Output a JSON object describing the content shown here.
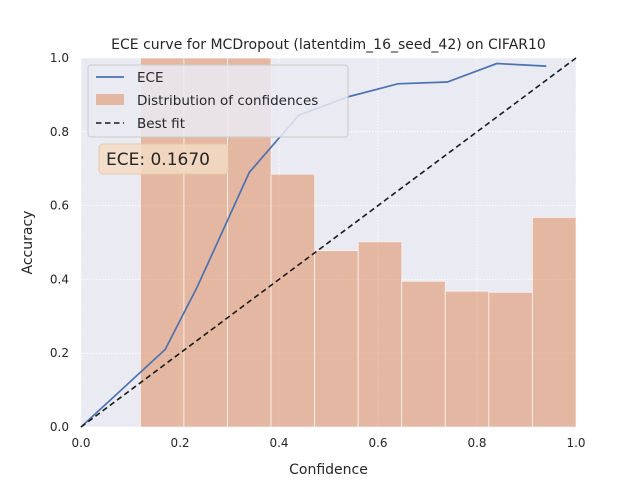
{
  "chart_data": {
    "type": "bar",
    "title": "ECE curve for MCDropout (latentdim_16_seed_42) on CIFAR10",
    "xlabel": "Confidence",
    "ylabel": "Accuracy",
    "xlim": [
      0,
      1
    ],
    "ylim": [
      0,
      1
    ],
    "x_ticks": [
      "0.0",
      "0.2",
      "0.4",
      "0.6",
      "0.8",
      "1.0"
    ],
    "y_ticks": [
      "0.0",
      "0.2",
      "0.4",
      "0.6",
      "0.8",
      "1.0"
    ],
    "grid": true,
    "legend_position": "top-left",
    "annotation": "ECE: 0.1670",
    "colors": {
      "background": "#eaeaf2",
      "grid": "#ffffff",
      "ece_line": "#4c72b0",
      "histogram": "#dd8452",
      "best_fit": "#1a1a1a",
      "annotation_box": "#f3dcc4"
    },
    "series": [
      {
        "name": "ECE",
        "kind": "line",
        "x": [
          0.0,
          0.17,
          0.235,
          0.34,
          0.44,
          0.54,
          0.64,
          0.74,
          0.84,
          0.94
        ],
        "y": [
          0.0,
          0.21,
          0.38,
          0.69,
          0.845,
          0.895,
          0.93,
          0.935,
          0.985,
          0.978
        ]
      },
      {
        "name": "Distribution of confidences",
        "kind": "histogram",
        "bin_edges": [
          0.12,
          0.208,
          0.296,
          0.384,
          0.472,
          0.56,
          0.648,
          0.736,
          0.824,
          0.912,
          1.0
        ],
        "values": [
          1.0,
          1.0,
          1.0,
          0.685,
          0.478,
          0.502,
          0.395,
          0.368,
          0.365,
          0.568
        ]
      },
      {
        "name": "Best fit",
        "kind": "dashed-line",
        "x": [
          0,
          1
        ],
        "y": [
          0,
          1
        ]
      }
    ]
  }
}
